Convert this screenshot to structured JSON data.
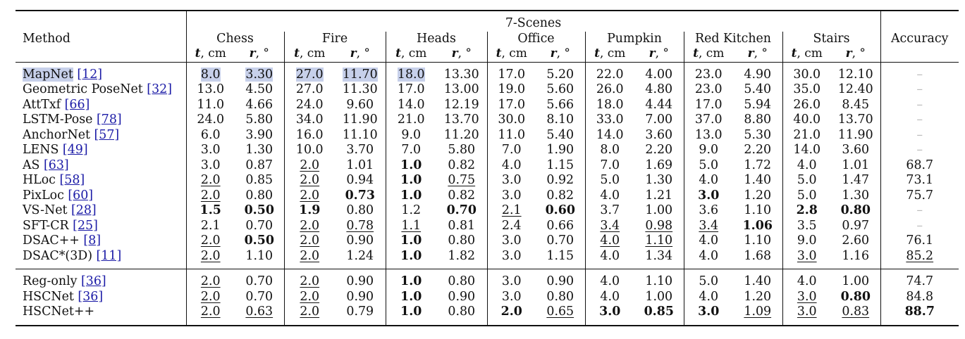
{
  "table": {
    "method_header": "Method",
    "group_header": "7-Scenes",
    "accuracy_header": "Accuracy",
    "scenes": [
      "Chess",
      "Fire",
      "Heads",
      "Office",
      "Pumpkin",
      "Red Kitchen",
      "Stairs"
    ],
    "t_label": "t",
    "t_unit": ", cm",
    "r_label": "r",
    "r_unit": ", °",
    "rows_top": [
      {
        "name": "MapNet",
        "ref": "[12]",
        "cells": [
          {
            "v": "8.0",
            "hl": true
          },
          {
            "v": "3.30",
            "hl": true
          },
          {
            "v": "27.0",
            "hl": true
          },
          {
            "v": "11.70",
            "hl": true
          },
          {
            "v": "18.0",
            "hl": true
          },
          {
            "v": "13.30"
          },
          {
            "v": "17.0"
          },
          {
            "v": "5.20"
          },
          {
            "v": "22.0"
          },
          {
            "v": "4.00"
          },
          {
            "v": "23.0"
          },
          {
            "v": "4.90"
          },
          {
            "v": "30.0"
          },
          {
            "v": "12.10"
          }
        ],
        "acc": {
          "v": "–",
          "dash": true
        },
        "hl_name": true
      },
      {
        "name": "Geometric PoseNet",
        "ref": "[32]",
        "cells": [
          {
            "v": "13.0"
          },
          {
            "v": "4.50"
          },
          {
            "v": "27.0"
          },
          {
            "v": "11.30"
          },
          {
            "v": "17.0"
          },
          {
            "v": "13.00"
          },
          {
            "v": "19.0"
          },
          {
            "v": "5.60"
          },
          {
            "v": "26.0"
          },
          {
            "v": "4.80"
          },
          {
            "v": "23.0"
          },
          {
            "v": "5.40"
          },
          {
            "v": "35.0"
          },
          {
            "v": "12.40"
          }
        ],
        "acc": {
          "v": "–",
          "dash": true
        }
      },
      {
        "name": "AttTxf",
        "ref": "[66]",
        "cells": [
          {
            "v": "11.0"
          },
          {
            "v": "4.66"
          },
          {
            "v": "24.0"
          },
          {
            "v": "9.60"
          },
          {
            "v": "14.0"
          },
          {
            "v": "12.19"
          },
          {
            "v": "17.0"
          },
          {
            "v": "5.66"
          },
          {
            "v": "18.0"
          },
          {
            "v": "4.44"
          },
          {
            "v": "17.0"
          },
          {
            "v": "5.94"
          },
          {
            "v": "26.0"
          },
          {
            "v": "8.45"
          }
        ],
        "acc": {
          "v": "–",
          "dash": true
        }
      },
      {
        "name": "LSTM-Pose",
        "ref": "[78]",
        "cells": [
          {
            "v": "24.0"
          },
          {
            "v": "5.80"
          },
          {
            "v": "34.0"
          },
          {
            "v": "11.90"
          },
          {
            "v": "21.0"
          },
          {
            "v": "13.70"
          },
          {
            "v": "30.0"
          },
          {
            "v": "8.10"
          },
          {
            "v": "33.0"
          },
          {
            "v": "7.00"
          },
          {
            "v": "37.0"
          },
          {
            "v": "8.80"
          },
          {
            "v": "40.0"
          },
          {
            "v": "13.70"
          }
        ],
        "acc": {
          "v": "–",
          "dash": true
        }
      },
      {
        "name": "AnchorNet",
        "ref": "[57]",
        "cells": [
          {
            "v": "6.0"
          },
          {
            "v": "3.90"
          },
          {
            "v": "16.0"
          },
          {
            "v": "11.10"
          },
          {
            "v": "9.0"
          },
          {
            "v": "11.20"
          },
          {
            "v": "11.0"
          },
          {
            "v": "5.40"
          },
          {
            "v": "14.0"
          },
          {
            "v": "3.60"
          },
          {
            "v": "13.0"
          },
          {
            "v": "5.30"
          },
          {
            "v": "21.0"
          },
          {
            "v": "11.90"
          }
        ],
        "acc": {
          "v": "–",
          "dash": true
        }
      },
      {
        "name": "LENS",
        "ref": "[49]",
        "cells": [
          {
            "v": "3.0"
          },
          {
            "v": "1.30"
          },
          {
            "v": "10.0"
          },
          {
            "v": "3.70"
          },
          {
            "v": "7.0"
          },
          {
            "v": "5.80"
          },
          {
            "v": "7.0"
          },
          {
            "v": "1.90"
          },
          {
            "v": "8.0"
          },
          {
            "v": "2.20"
          },
          {
            "v": "9.0"
          },
          {
            "v": "2.20"
          },
          {
            "v": "14.0"
          },
          {
            "v": "3.60"
          }
        ],
        "acc": {
          "v": "–",
          "dash": true
        }
      },
      {
        "name": "AS",
        "ref": "[63]",
        "cells": [
          {
            "v": "3.0"
          },
          {
            "v": "0.87"
          },
          {
            "v": "2.0",
            "u": true
          },
          {
            "v": "1.01"
          },
          {
            "v": "1.0",
            "b": true
          },
          {
            "v": "0.82"
          },
          {
            "v": "4.0"
          },
          {
            "v": "1.15"
          },
          {
            "v": "7.0"
          },
          {
            "v": "1.69"
          },
          {
            "v": "5.0"
          },
          {
            "v": "1.72"
          },
          {
            "v": "4.0"
          },
          {
            "v": "1.01"
          }
        ],
        "acc": {
          "v": "68.7"
        }
      },
      {
        "name": "HLoc",
        "ref": "[58]",
        "cells": [
          {
            "v": "2.0",
            "u": true
          },
          {
            "v": "0.85"
          },
          {
            "v": "2.0",
            "u": true
          },
          {
            "v": "0.94"
          },
          {
            "v": "1.0",
            "b": true
          },
          {
            "v": "0.75",
            "u": true
          },
          {
            "v": "3.0"
          },
          {
            "v": "0.92"
          },
          {
            "v": "5.0"
          },
          {
            "v": "1.30"
          },
          {
            "v": "4.0"
          },
          {
            "v": "1.40"
          },
          {
            "v": "5.0"
          },
          {
            "v": "1.47"
          }
        ],
        "acc": {
          "v": "73.1"
        }
      },
      {
        "name": "PixLoc",
        "ref": "[60]",
        "cells": [
          {
            "v": "2.0",
            "u": true
          },
          {
            "v": "0.80"
          },
          {
            "v": "2.0",
            "u": true
          },
          {
            "v": "0.73",
            "b": true
          },
          {
            "v": "1.0",
            "b": true
          },
          {
            "v": "0.82"
          },
          {
            "v": "3.0"
          },
          {
            "v": "0.82"
          },
          {
            "v": "4.0"
          },
          {
            "v": "1.21"
          },
          {
            "v": "3.0",
            "b": true
          },
          {
            "v": "1.20"
          },
          {
            "v": "5.0"
          },
          {
            "v": "1.30"
          }
        ],
        "acc": {
          "v": "75.7"
        }
      },
      {
        "name": "VS-Net",
        "ref": "[28]",
        "cells": [
          {
            "v": "1.5",
            "b": true
          },
          {
            "v": "0.50",
            "b": true
          },
          {
            "v": "1.9",
            "b": true
          },
          {
            "v": "0.80"
          },
          {
            "v": "1.2"
          },
          {
            "v": "0.70",
            "b": true
          },
          {
            "v": "2.1",
            "u": true
          },
          {
            "v": "0.60",
            "b": true
          },
          {
            "v": "3.7"
          },
          {
            "v": "1.00"
          },
          {
            "v": "3.6"
          },
          {
            "v": "1.10"
          },
          {
            "v": "2.8",
            "b": true
          },
          {
            "v": "0.80",
            "b": true
          }
        ],
        "acc": {
          "v": "–",
          "dash": true
        }
      },
      {
        "name": "SFT-CR",
        "ref": "[25]",
        "cells": [
          {
            "v": "2.1"
          },
          {
            "v": "0.70"
          },
          {
            "v": "2.0",
            "u": true
          },
          {
            "v": "0.78",
            "u": true
          },
          {
            "v": "1.1",
            "u": true
          },
          {
            "v": "0.81"
          },
          {
            "v": "2.4"
          },
          {
            "v": "0.66"
          },
          {
            "v": "3.4",
            "u": true
          },
          {
            "v": "0.98",
            "u": true
          },
          {
            "v": "3.4",
            "u": true
          },
          {
            "v": "1.06",
            "b": true
          },
          {
            "v": "3.5"
          },
          {
            "v": "0.97"
          }
        ],
        "acc": {
          "v": "–",
          "dash": true
        }
      },
      {
        "name": "DSAC++",
        "ref": "[8]",
        "cells": [
          {
            "v": "2.0",
            "u": true
          },
          {
            "v": "0.50",
            "b": true
          },
          {
            "v": "2.0",
            "u": true
          },
          {
            "v": "0.90"
          },
          {
            "v": "1.0",
            "b": true
          },
          {
            "v": "0.80"
          },
          {
            "v": "3.0"
          },
          {
            "v": "0.70"
          },
          {
            "v": "4.0",
            "u": true
          },
          {
            "v": "1.10",
            "u": true
          },
          {
            "v": "4.0"
          },
          {
            "v": "1.10"
          },
          {
            "v": "9.0"
          },
          {
            "v": "2.60"
          }
        ],
        "acc": {
          "v": "76.1"
        }
      },
      {
        "name": "DSAC*(3D)",
        "ref": "[11]",
        "cells": [
          {
            "v": "2.0",
            "u": true
          },
          {
            "v": "1.10"
          },
          {
            "v": "2.0",
            "u": true
          },
          {
            "v": "1.24"
          },
          {
            "v": "1.0",
            "b": true
          },
          {
            "v": "1.82"
          },
          {
            "v": "3.0"
          },
          {
            "v": "1.15"
          },
          {
            "v": "4.0"
          },
          {
            "v": "1.34"
          },
          {
            "v": "4.0"
          },
          {
            "v": "1.68"
          },
          {
            "v": "3.0",
            "u": true
          },
          {
            "v": "1.16"
          }
        ],
        "acc": {
          "v": "85.2",
          "u": true
        }
      }
    ],
    "rows_bottom": [
      {
        "name": "Reg-only",
        "ref": "[36]",
        "cells": [
          {
            "v": "2.0",
            "u": true
          },
          {
            "v": "0.70"
          },
          {
            "v": "2.0",
            "u": true
          },
          {
            "v": "0.90"
          },
          {
            "v": "1.0",
            "b": true
          },
          {
            "v": "0.80"
          },
          {
            "v": "3.0"
          },
          {
            "v": "0.90"
          },
          {
            "v": "4.0"
          },
          {
            "v": "1.10"
          },
          {
            "v": "5.0"
          },
          {
            "v": "1.40"
          },
          {
            "v": "4.0"
          },
          {
            "v": "1.00"
          }
        ],
        "acc": {
          "v": "74.7"
        }
      },
      {
        "name": "HSCNet",
        "ref": "[36]",
        "cells": [
          {
            "v": "2.0",
            "u": true
          },
          {
            "v": "0.70"
          },
          {
            "v": "2.0",
            "u": true
          },
          {
            "v": "0.90"
          },
          {
            "v": "1.0",
            "b": true
          },
          {
            "v": "0.90"
          },
          {
            "v": "3.0"
          },
          {
            "v": "0.80"
          },
          {
            "v": "4.0"
          },
          {
            "v": "1.00"
          },
          {
            "v": "4.0"
          },
          {
            "v": "1.20"
          },
          {
            "v": "3.0",
            "u": true
          },
          {
            "v": "0.80",
            "b": true
          }
        ],
        "acc": {
          "v": "84.8"
        }
      },
      {
        "name": "HSCNet++",
        "ref": "",
        "cells": [
          {
            "v": "2.0",
            "u": true
          },
          {
            "v": "0.63",
            "u": true
          },
          {
            "v": "2.0",
            "u": true
          },
          {
            "v": "0.79"
          },
          {
            "v": "1.0",
            "b": true
          },
          {
            "v": "0.80"
          },
          {
            "v": "2.0",
            "b": true
          },
          {
            "v": "0.65",
            "u": true
          },
          {
            "v": "3.0",
            "b": true
          },
          {
            "v": "0.85",
            "b": true
          },
          {
            "v": "3.0",
            "b": true
          },
          {
            "v": "1.09",
            "u": true
          },
          {
            "v": "3.0",
            "u": true
          },
          {
            "v": "0.83",
            "u": true
          }
        ],
        "acc": {
          "v": "88.7",
          "b": true
        }
      }
    ]
  }
}
